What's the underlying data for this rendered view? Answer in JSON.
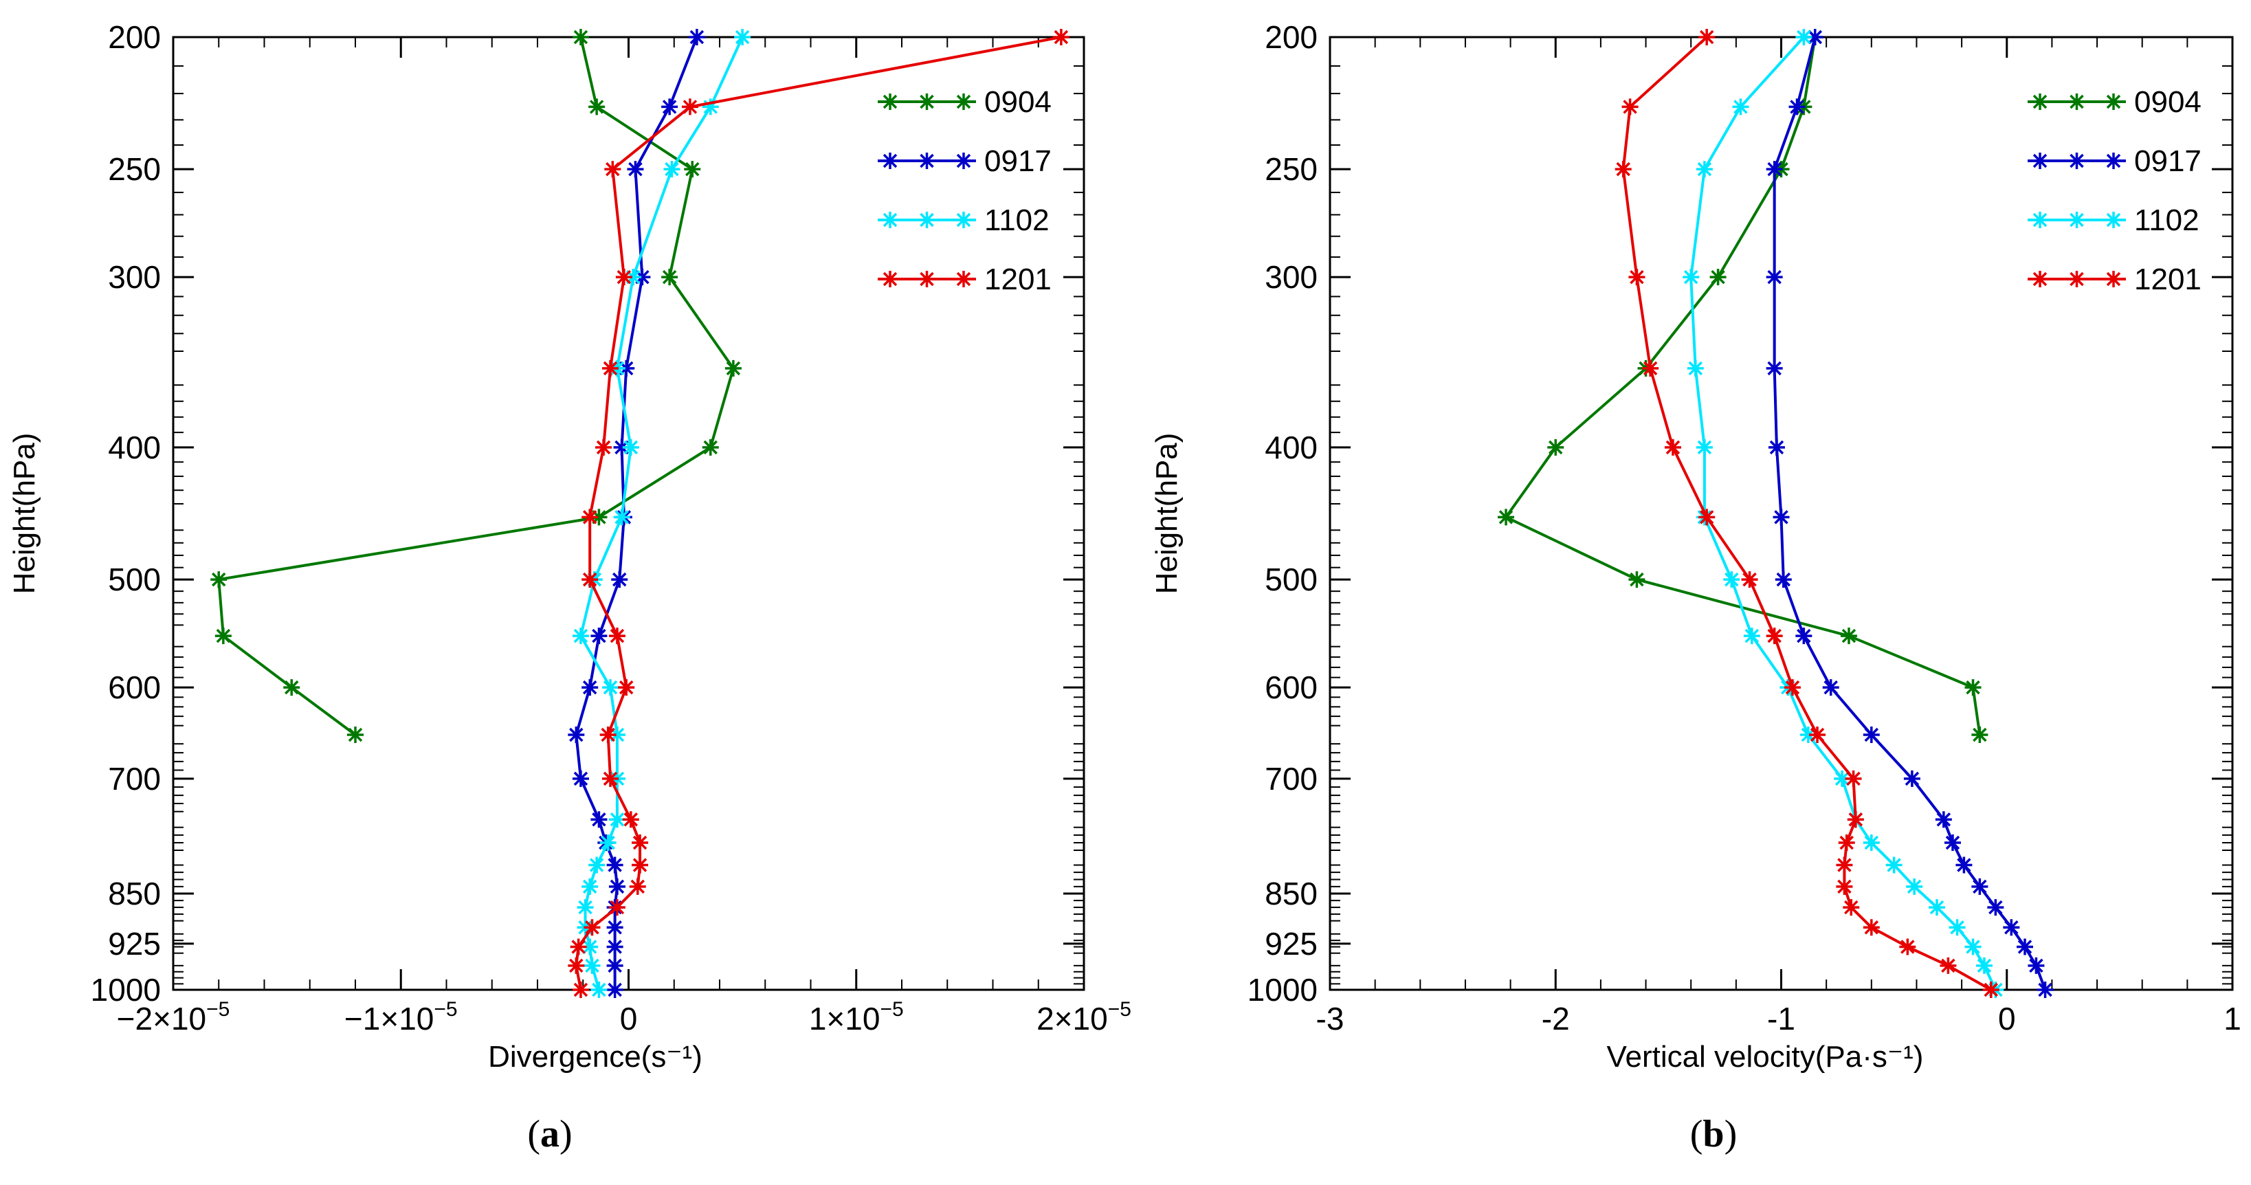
{
  "colors": {
    "0904": "#007800",
    "0917": "#0000c8",
    "1102": "#00e6ff",
    "1201": "#e60000"
  },
  "chart_data": [
    {
      "type": "line",
      "caption": "(a)",
      "xlabel": "Divergence(s⁻¹)",
      "ylabel": "Height(hPa)",
      "xlim": [
        -2e-05,
        2e-05
      ],
      "ylim": [
        200,
        1000
      ],
      "y_scale": "log",
      "y_inverted": true,
      "x_ticks": [
        {
          "value": -2e-05,
          "label": "−2×10",
          "exp": "−5"
        },
        {
          "value": -1e-05,
          "label": "−1×10",
          "exp": "−5"
        },
        {
          "value": 0,
          "label": "0",
          "exp": ""
        },
        {
          "value": 1e-05,
          "label": "1×10",
          "exp": "−5"
        },
        {
          "value": 2e-05,
          "label": "2×10",
          "exp": "−5"
        }
      ],
      "y_ticks": [
        200,
        250,
        300,
        400,
        500,
        600,
        700,
        850,
        925,
        1000
      ],
      "legend": {
        "position": "top-right",
        "entries": [
          "0904",
          "0917",
          "1102",
          "1201"
        ]
      },
      "series": [
        {
          "name": "0904",
          "points": [
            [
              -2.1e-06,
              200
            ],
            [
              -1.4e-06,
              225
            ],
            [
              2.8e-06,
              250
            ],
            [
              1.8e-06,
              300
            ],
            [
              4.6e-06,
              350
            ],
            [
              3.6e-06,
              400
            ],
            [
              -1.3e-06,
              450
            ],
            [
              -1.8e-05,
              500
            ],
            [
              -1.78e-05,
              550
            ],
            [
              -1.48e-05,
              600
            ],
            [
              -1.2e-05,
              650
            ]
          ]
        },
        {
          "name": "0917",
          "points": [
            [
              3e-06,
              200
            ],
            [
              1.8e-06,
              225
            ],
            [
              3e-07,
              250
            ],
            [
              6e-07,
              300
            ],
            [
              -1e-07,
              350
            ],
            [
              -3e-07,
              400
            ],
            [
              -2e-07,
              450
            ],
            [
              -4e-07,
              500
            ],
            [
              -1.3e-06,
              550
            ],
            [
              -1.7e-06,
              600
            ],
            [
              -2.3e-06,
              650
            ],
            [
              -2.1e-06,
              700
            ],
            [
              -1.3e-06,
              750
            ],
            [
              -1e-06,
              780
            ],
            [
              -6e-07,
              810
            ],
            [
              -5e-07,
              840
            ],
            [
              -6e-07,
              870
            ],
            [
              -6e-07,
              900
            ],
            [
              -6e-07,
              930
            ],
            [
              -6e-07,
              960
            ],
            [
              -6e-07,
              1000
            ]
          ]
        },
        {
          "name": "1102",
          "points": [
            [
              5e-06,
              200
            ],
            [
              3.6e-06,
              225
            ],
            [
              1.9e-06,
              250
            ],
            [
              2e-07,
              300
            ],
            [
              -5e-07,
              350
            ],
            [
              1e-07,
              400
            ],
            [
              -3e-07,
              450
            ],
            [
              -1.5e-06,
              500
            ],
            [
              -2.1e-06,
              550
            ],
            [
              -8e-07,
              600
            ],
            [
              -5e-07,
              650
            ],
            [
              -5e-07,
              700
            ],
            [
              -5e-07,
              750
            ],
            [
              -9e-07,
              780
            ],
            [
              -1.4e-06,
              810
            ],
            [
              -1.7e-06,
              840
            ],
            [
              -1.9e-06,
              870
            ],
            [
              -1.9e-06,
              900
            ],
            [
              -1.7e-06,
              930
            ],
            [
              -1.6e-06,
              960
            ],
            [
              -1.3e-06,
              1000
            ]
          ]
        },
        {
          "name": "1201",
          "points": [
            [
              1.9e-05,
              200
            ],
            [
              2.7e-06,
              225
            ],
            [
              -7e-07,
              250
            ],
            [
              -2e-07,
              300
            ],
            [
              -8e-07,
              350
            ],
            [
              -1.1e-06,
              400
            ],
            [
              -1.7e-06,
              450
            ],
            [
              -1.7e-06,
              500
            ],
            [
              -5e-07,
              550
            ],
            [
              -1e-07,
              600
            ],
            [
              -9e-07,
              650
            ],
            [
              -8e-07,
              700
            ],
            [
              1e-07,
              750
            ],
            [
              5e-07,
              780
            ],
            [
              5e-07,
              810
            ],
            [
              4e-07,
              840
            ],
            [
              -5e-07,
              870
            ],
            [
              -1.6e-06,
              900
            ],
            [
              -2.2e-06,
              930
            ],
            [
              -2.3e-06,
              960
            ],
            [
              -2.1e-06,
              1000
            ]
          ]
        }
      ]
    },
    {
      "type": "line",
      "caption": "(b)",
      "xlabel": "Vertical velocity(Pa·s⁻¹)",
      "ylabel": "Height(hPa)",
      "xlim": [
        -3,
        1
      ],
      "ylim": [
        200,
        1000
      ],
      "y_scale": "log",
      "y_inverted": true,
      "x_ticks": [
        {
          "value": -3,
          "label": "-3",
          "exp": ""
        },
        {
          "value": -2,
          "label": "-2",
          "exp": ""
        },
        {
          "value": -1,
          "label": "-1",
          "exp": ""
        },
        {
          "value": 0,
          "label": "0",
          "exp": ""
        },
        {
          "value": 1,
          "label": "1",
          "exp": ""
        }
      ],
      "y_ticks": [
        200,
        250,
        300,
        400,
        500,
        600,
        700,
        850,
        925,
        1000
      ],
      "legend": {
        "position": "top-right",
        "entries": [
          "0904",
          "0917",
          "1102",
          "1201"
        ]
      },
      "series": [
        {
          "name": "0904",
          "points": [
            [
              -0.85,
              200
            ],
            [
              -0.9,
              225
            ],
            [
              -1.0,
              250
            ],
            [
              -1.28,
              300
            ],
            [
              -1.6,
              350
            ],
            [
              -2.0,
              400
            ],
            [
              -2.22,
              450
            ],
            [
              -1.64,
              500
            ],
            [
              -0.7,
              550
            ],
            [
              -0.15,
              600
            ],
            [
              -0.12,
              650
            ]
          ]
        },
        {
          "name": "0917",
          "points": [
            [
              -0.85,
              200
            ],
            [
              -0.93,
              225
            ],
            [
              -1.03,
              250
            ],
            [
              -1.03,
              300
            ],
            [
              -1.03,
              350
            ],
            [
              -1.02,
              400
            ],
            [
              -1.0,
              450
            ],
            [
              -0.99,
              500
            ],
            [
              -0.9,
              550
            ],
            [
              -0.78,
              600
            ],
            [
              -0.6,
              650
            ],
            [
              -0.42,
              700
            ],
            [
              -0.28,
              750
            ],
            [
              -0.24,
              780
            ],
            [
              -0.19,
              810
            ],
            [
              -0.12,
              840
            ],
            [
              -0.05,
              870
            ],
            [
              0.02,
              900
            ],
            [
              0.08,
              930
            ],
            [
              0.13,
              960
            ],
            [
              0.17,
              1000
            ]
          ]
        },
        {
          "name": "1102",
          "points": [
            [
              -0.9,
              200
            ],
            [
              -1.18,
              225
            ],
            [
              -1.34,
              250
            ],
            [
              -1.4,
              300
            ],
            [
              -1.38,
              350
            ],
            [
              -1.34,
              400
            ],
            [
              -1.34,
              450
            ],
            [
              -1.22,
              500
            ],
            [
              -1.13,
              550
            ],
            [
              -0.97,
              600
            ],
            [
              -0.88,
              650
            ],
            [
              -0.73,
              700
            ],
            [
              -0.67,
              750
            ],
            [
              -0.6,
              780
            ],
            [
              -0.5,
              810
            ],
            [
              -0.41,
              840
            ],
            [
              -0.31,
              870
            ],
            [
              -0.22,
              900
            ],
            [
              -0.15,
              930
            ],
            [
              -0.1,
              960
            ],
            [
              -0.05,
              1000
            ]
          ]
        },
        {
          "name": "1201",
          "points": [
            [
              -1.33,
              200
            ],
            [
              -1.67,
              225
            ],
            [
              -1.7,
              250
            ],
            [
              -1.64,
              300
            ],
            [
              -1.58,
              350
            ],
            [
              -1.48,
              400
            ],
            [
              -1.33,
              450
            ],
            [
              -1.14,
              500
            ],
            [
              -1.03,
              550
            ],
            [
              -0.95,
              600
            ],
            [
              -0.84,
              650
            ],
            [
              -0.68,
              700
            ],
            [
              -0.67,
              750
            ],
            [
              -0.71,
              780
            ],
            [
              -0.72,
              810
            ],
            [
              -0.72,
              840
            ],
            [
              -0.69,
              870
            ],
            [
              -0.6,
              900
            ],
            [
              -0.44,
              930
            ],
            [
              -0.26,
              960
            ],
            [
              -0.07,
              1000
            ]
          ]
        }
      ]
    }
  ]
}
